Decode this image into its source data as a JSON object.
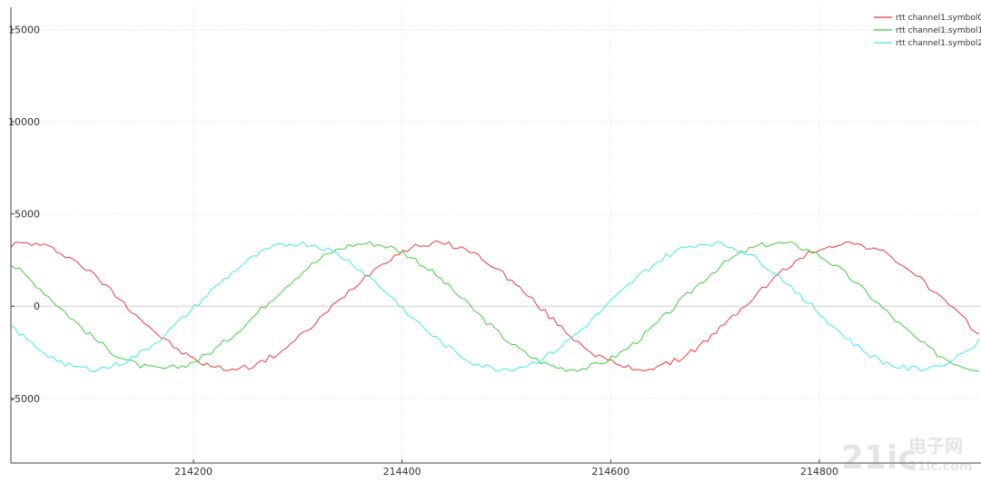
{
  "chart_data": {
    "type": "line",
    "title": "",
    "xlabel": "",
    "ylabel": "",
    "xlim": [
      214025,
      214955
    ],
    "ylim": [
      -8500,
      16200
    ],
    "grid": true,
    "legend_position": "top-right",
    "x_ticks": [
      214200,
      214400,
      214600,
      214800
    ],
    "x_tick_labels": [
      "214200",
      "214400",
      "214600",
      "214800"
    ],
    "y_ticks": [
      15000,
      10000,
      5000,
      0,
      -5000
    ],
    "y_tick_labels": [
      "15000",
      "10000",
      "5000",
      "0",
      "-5000"
    ],
    "sampling": {
      "x_start": 214025,
      "x_end": 214955,
      "step": 4
    },
    "series": [
      {
        "name": "rtt channel1.symbol0",
        "color": "#ee3b3b",
        "amplitude": 3400,
        "period": 394,
        "crossing_x": 214137,
        "noise": 160
      },
      {
        "name": "rtt channel1.symbol1",
        "color": "#3ecf3e",
        "amplitude": 3400,
        "period": 394,
        "crossing_x": 214071,
        "noise": 160
      },
      {
        "name": "rtt channel1.symbol2",
        "color": "#40e8e8",
        "amplitude": 3400,
        "period": 394,
        "crossing_x": 214005,
        "noise": 160
      }
    ]
  },
  "watermark": {
    "number": "21ic",
    "text": "电子网",
    "domain": "21ic.com"
  }
}
